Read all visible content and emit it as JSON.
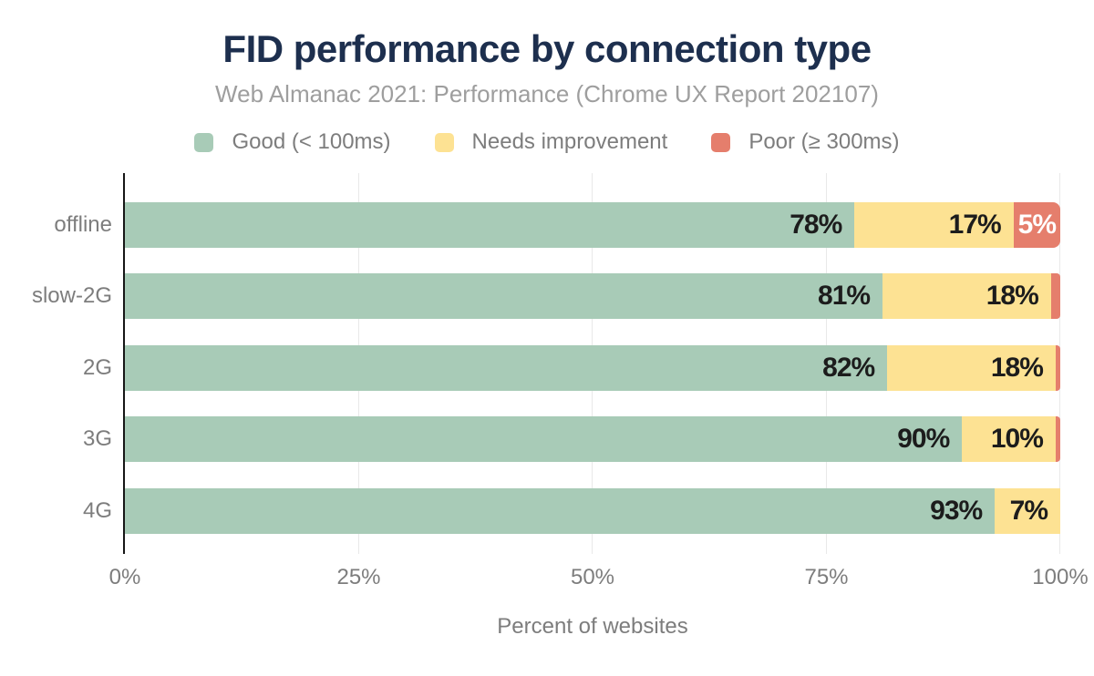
{
  "header": {
    "title": "FID performance by connection type",
    "subtitle": "Web Almanac 2021: Performance (Chrome UX Report 202107)"
  },
  "legend": {
    "items": [
      {
        "label": "Good (< 100ms)",
        "color": "#a8cbb7"
      },
      {
        "label": "Needs improvement",
        "color": "#fde293"
      },
      {
        "label": "Poor (≥ 300ms)",
        "color": "#e57e6c"
      }
    ]
  },
  "chart_data": {
    "type": "bar",
    "orientation": "horizontal",
    "stacked": true,
    "title": "FID performance by connection type",
    "subtitle": "Web Almanac 2021: Performance (Chrome UX Report 202107)",
    "categories": [
      "offline",
      "slow-2G",
      "2G",
      "3G",
      "4G"
    ],
    "series": [
      {
        "name": "Good (< 100ms)",
        "color": "#a8cbb7",
        "values": [
          78,
          81,
          82,
          90,
          93
        ]
      },
      {
        "name": "Needs improvement",
        "color": "#fde293",
        "values": [
          17,
          18,
          18,
          10,
          7
        ]
      },
      {
        "name": "Poor (≥ 300ms)",
        "color": "#e57e6c",
        "values": [
          5,
          1,
          0.5,
          0.5,
          0
        ]
      }
    ],
    "bar_labels": [
      [
        "78%",
        "17%",
        "5%"
      ],
      [
        "81%",
        "18%",
        ""
      ],
      [
        "82%",
        "18%",
        ""
      ],
      [
        "90%",
        "10%",
        ""
      ],
      [
        "93%",
        "7%",
        ""
      ]
    ],
    "xlabel": "Percent of websites",
    "x_ticks": [
      {
        "value": 0,
        "label": "0%"
      },
      {
        "value": 25,
        "label": "25%"
      },
      {
        "value": 50,
        "label": "50%"
      },
      {
        "value": 75,
        "label": "75%"
      },
      {
        "value": 100,
        "label": "100%"
      }
    ],
    "xlim": [
      0,
      100
    ],
    "grid": true,
    "legend_position": "top"
  },
  "colors": {
    "title": "#1d2f4e",
    "subtitle": "#9e9e9e",
    "axis_line": "#161616",
    "gridline": "#e9e9e9",
    "tick_text": "#7d7d7d",
    "bar_label": "#1c1c1c",
    "bar_label_on_poor": "#ffffff"
  }
}
